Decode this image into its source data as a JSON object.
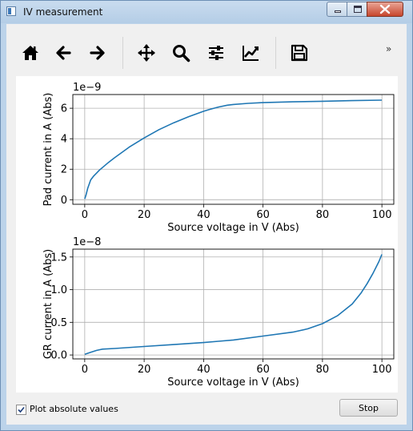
{
  "window": {
    "title": "IV measurement",
    "icons": {
      "app": "window-app-icon",
      "minimize": "minimize-icon",
      "maximize": "maximize-icon",
      "close": "close-icon"
    }
  },
  "toolbar": {
    "items": [
      {
        "id": "home",
        "icon": "home-icon"
      },
      {
        "id": "back",
        "icon": "arrow-left-icon"
      },
      {
        "id": "forward",
        "icon": "arrow-right-icon"
      },
      {
        "id": "pan",
        "icon": "move-arrows-icon"
      },
      {
        "id": "zoom",
        "icon": "magnifier-icon"
      },
      {
        "id": "subplots",
        "icon": "sliders-icon"
      },
      {
        "id": "customize",
        "icon": "line-chart-icon"
      },
      {
        "id": "save",
        "icon": "floppy-disk-icon"
      }
    ],
    "overflow_label": "»"
  },
  "chart_data": [
    {
      "type": "line",
      "xlabel": "Source voltage in V (Abs)",
      "ylabel": "Pad current in A (Abs)",
      "offset_label": "1e−9",
      "xlim": [
        -4,
        104
      ],
      "ylim": [
        -0.3,
        6.9
      ],
      "xticks": [
        0,
        20,
        40,
        60,
        80,
        100
      ],
      "yticks": [
        0,
        2,
        4,
        6
      ],
      "xtick_labels": [
        "0",
        "20",
        "40",
        "60",
        "80",
        "100"
      ],
      "ytick_labels": [
        "0",
        "2",
        "4",
        "6"
      ],
      "grid": true,
      "color": "#1f77b4",
      "series": [
        {
          "x": [
            0,
            0.5,
            1,
            2,
            3,
            5,
            8,
            10,
            15,
            20,
            25,
            30,
            35,
            40,
            42,
            45,
            48,
            50,
            55,
            60,
            70,
            80,
            90,
            100
          ],
          "y": [
            0.05,
            0.35,
            0.75,
            1.3,
            1.55,
            1.95,
            2.45,
            2.75,
            3.45,
            4.05,
            4.6,
            5.05,
            5.45,
            5.8,
            5.92,
            6.08,
            6.2,
            6.25,
            6.32,
            6.37,
            6.42,
            6.46,
            6.5,
            6.53
          ]
        }
      ]
    },
    {
      "type": "line",
      "xlabel": "Source voltage in V (Abs)",
      "ylabel": "GR current in A (Abs)",
      "offset_label": "1e−8",
      "xlim": [
        -4,
        104
      ],
      "ylim": [
        -0.06,
        1.62
      ],
      "xticks": [
        0,
        20,
        40,
        60,
        80,
        100
      ],
      "yticks": [
        0.0,
        0.5,
        1.0,
        1.5
      ],
      "xtick_labels": [
        "0",
        "20",
        "40",
        "60",
        "80",
        "100"
      ],
      "ytick_labels": [
        "0.0",
        "0.5",
        "1.0",
        "1.5"
      ],
      "grid": true,
      "color": "#1f77b4",
      "series": [
        {
          "x": [
            0,
            2,
            4,
            6,
            10,
            20,
            30,
            40,
            45,
            50,
            60,
            70,
            75,
            80,
            85,
            90,
            93,
            95,
            97,
            99,
            100
          ],
          "y": [
            0.01,
            0.04,
            0.07,
            0.09,
            0.1,
            0.13,
            0.16,
            0.19,
            0.21,
            0.23,
            0.29,
            0.35,
            0.4,
            0.48,
            0.6,
            0.78,
            0.95,
            1.09,
            1.25,
            1.43,
            1.54
          ]
        }
      ]
    }
  ],
  "footer": {
    "checkbox_label": "Plot absolute values",
    "checkbox_checked": true,
    "stop_label": "Stop"
  }
}
